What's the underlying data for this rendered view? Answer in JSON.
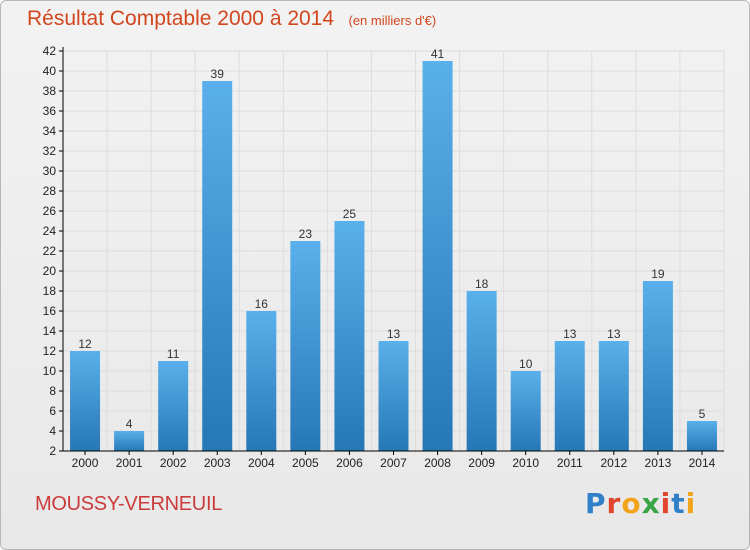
{
  "title": "Résultat Comptable 2000 à 2014",
  "subtitle": "(en milliers d'€)",
  "commune": "MOUSSY-VERNEUIL",
  "brand": {
    "text": "Proxiti",
    "letter_colors": [
      "#2f7fc9",
      "#e1452b",
      "#f2a51a",
      "#3aa547",
      "#e1452b",
      "#2f7fc9",
      "#f2a51a"
    ]
  },
  "colors": {
    "title": "#d2461e",
    "bar_top": "#5ab0ea",
    "bar_bottom": "#2677b6",
    "grid": "#dddddd",
    "axis": "#000000"
  },
  "chart_data": {
    "type": "bar",
    "categories": [
      "2000",
      "2001",
      "2002",
      "2003",
      "2004",
      "2005",
      "2006",
      "2007",
      "2008",
      "2009",
      "2010",
      "2011",
      "2012",
      "2013",
      "2014"
    ],
    "values": [
      12,
      4,
      11,
      39,
      16,
      23,
      25,
      13,
      41,
      18,
      10,
      13,
      13,
      19,
      5
    ],
    "data_labels": [
      "12",
      "4",
      "11",
      "39",
      "16",
      "23",
      "25",
      "13",
      "41",
      "18",
      "10",
      "13",
      "13",
      "19",
      "5"
    ],
    "ylim": [
      2,
      42
    ],
    "yticks": [
      2,
      4,
      6,
      8,
      10,
      12,
      14,
      16,
      18,
      20,
      22,
      24,
      26,
      28,
      30,
      32,
      34,
      36,
      38,
      40,
      42
    ],
    "grid": true,
    "title": "Résultat Comptable 2000 à 2014",
    "subtitle": "(en milliers d'€)"
  }
}
